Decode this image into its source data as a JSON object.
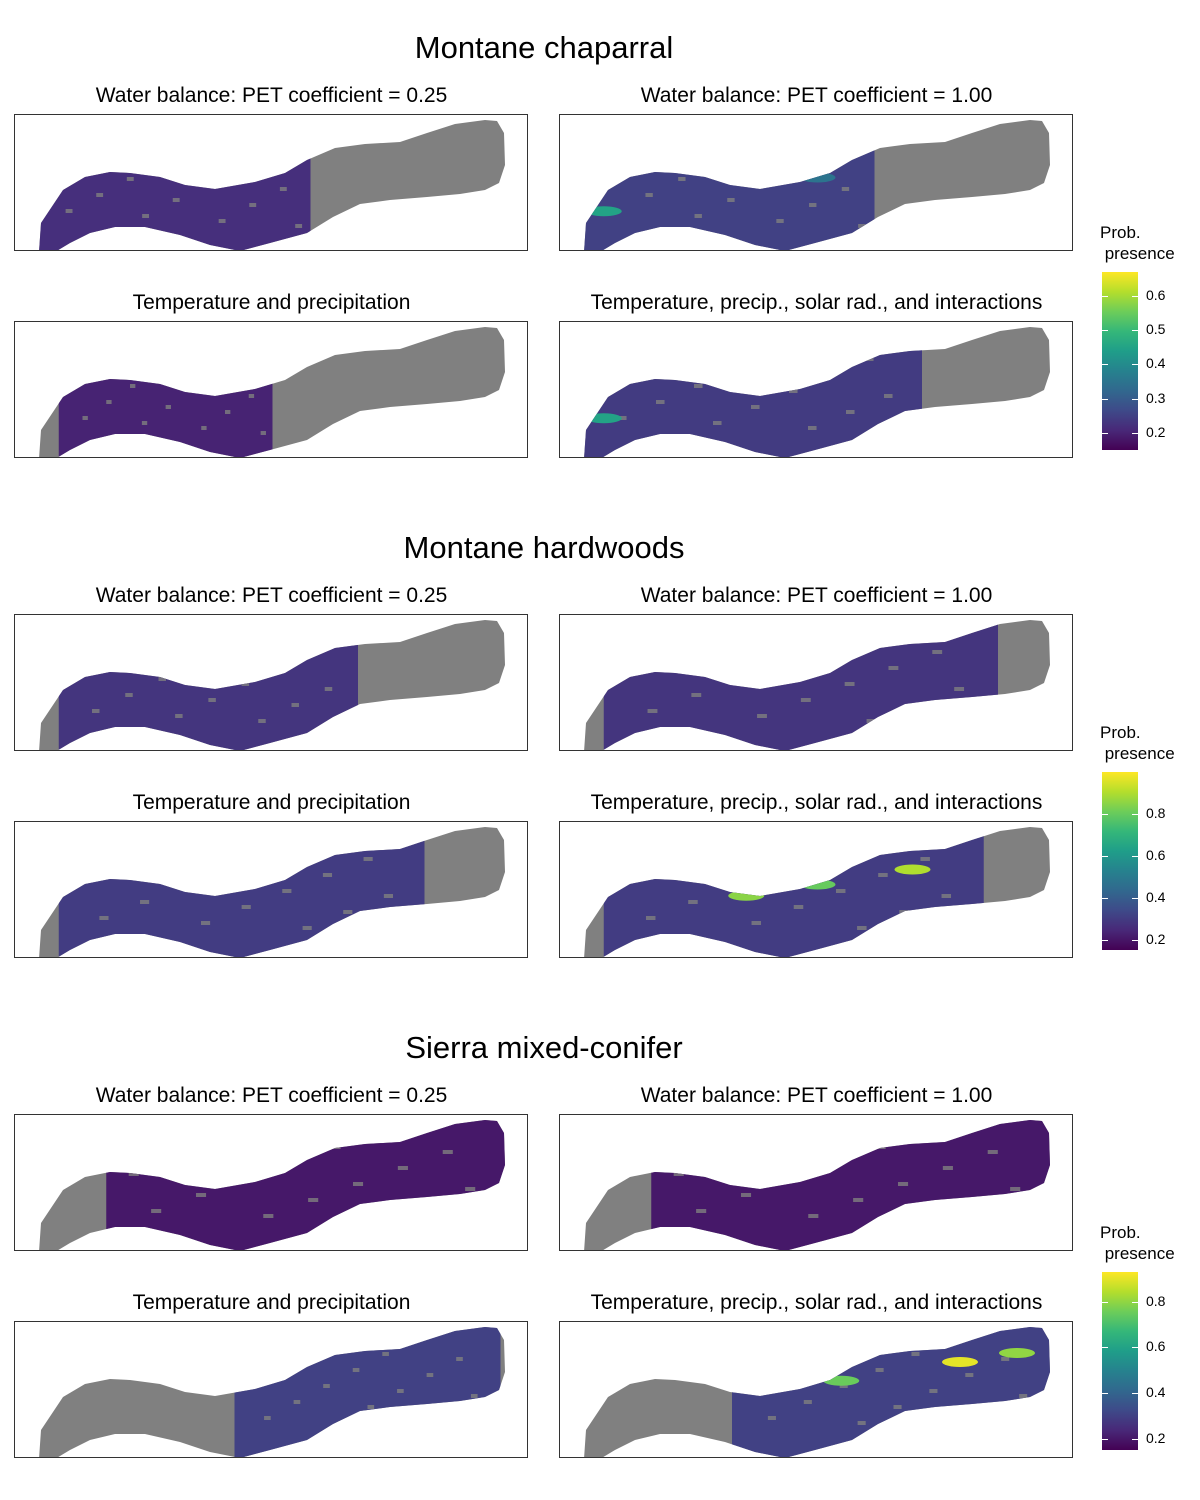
{
  "colors": {
    "viridis": [
      "#440154",
      "#482878",
      "#3e4a89",
      "#31688e",
      "#26828e",
      "#1f9e89",
      "#35b779",
      "#6dcd59",
      "#b4de2c",
      "#fde725"
    ],
    "region_fill": "#808080"
  },
  "legend_title_line1": "Prob.",
  "legend_title_line2": " presence",
  "chart_data": [
    {
      "type": "heatmap",
      "title": "Montane chaparral",
      "panels": [
        {
          "title": "Water balance: PET coefficient = 0.25",
          "coverage": [
            0.0,
            0.58
          ],
          "mean_prob": 0.22,
          "hotspots": []
        },
        {
          "title": "Water balance: PET coefficient = 1.00",
          "coverage": [
            0.0,
            0.62
          ],
          "mean_prob": 0.25,
          "hotspots": [
            {
              "at": 0.05,
              "prob": 0.45
            },
            {
              "at": 0.5,
              "prob": 0.35
            }
          ]
        },
        {
          "title": "Temperature and precipitation",
          "coverage": [
            0.05,
            0.5
          ],
          "mean_prob": 0.2,
          "hotspots": []
        },
        {
          "title": "Temperature, precip., solar rad., and interactions",
          "coverage": [
            0.0,
            0.72
          ],
          "mean_prob": 0.24,
          "hotspots": [
            {
              "at": 0.05,
              "prob": 0.45
            }
          ]
        }
      ],
      "legend": {
        "ticks": [
          0.2,
          0.3,
          0.4,
          0.5,
          0.6
        ],
        "range": [
          0.15,
          0.67
        ]
      }
    },
    {
      "type": "heatmap",
      "title": "Montane hardwoods",
      "panels": [
        {
          "title": "Water balance: PET coefficient = 0.25",
          "coverage": [
            0.05,
            0.68
          ],
          "mean_prob": 0.28,
          "hotspots": []
        },
        {
          "title": "Water balance: PET coefficient = 1.00",
          "coverage": [
            0.05,
            0.88
          ],
          "mean_prob": 0.28,
          "hotspots": []
        },
        {
          "title": "Temperature and precipitation",
          "coverage": [
            0.05,
            0.82
          ],
          "mean_prob": 0.3,
          "hotspots": []
        },
        {
          "title": "Temperature, precip., solar rad., and interactions",
          "coverage": [
            0.05,
            0.85
          ],
          "mean_prob": 0.3,
          "hotspots": [
            {
              "at": 0.35,
              "prob": 0.85
            },
            {
              "at": 0.5,
              "prob": 0.8
            },
            {
              "at": 0.7,
              "prob": 0.9
            }
          ]
        }
      ],
      "legend": {
        "ticks": [
          0.2,
          0.4,
          0.6,
          0.8
        ],
        "range": [
          0.15,
          1.0
        ]
      }
    },
    {
      "type": "heatmap",
      "title": "Sierra mixed-conifer",
      "panels": [
        {
          "title": "Water balance: PET coefficient = 0.25",
          "coverage": [
            0.15,
            1.0
          ],
          "mean_prob": 0.2,
          "hotspots": []
        },
        {
          "title": "Water balance: PET coefficient = 1.00",
          "coverage": [
            0.15,
            1.0
          ],
          "mean_prob": 0.2,
          "hotspots": []
        },
        {
          "title": "Temperature and precipitation",
          "coverage": [
            0.42,
            0.98
          ],
          "mean_prob": 0.3,
          "hotspots": []
        },
        {
          "title": "Temperature, precip., solar rad., and interactions",
          "coverage": [
            0.32,
            1.0
          ],
          "mean_prob": 0.3,
          "hotspots": [
            {
              "at": 0.8,
              "prob": 0.9
            },
            {
              "at": 0.92,
              "prob": 0.8
            },
            {
              "at": 0.55,
              "prob": 0.75
            }
          ]
        }
      ],
      "legend": {
        "ticks": [
          0.2,
          0.4,
          0.6,
          0.8
        ],
        "range": [
          0.15,
          0.93
        ]
      }
    }
  ]
}
